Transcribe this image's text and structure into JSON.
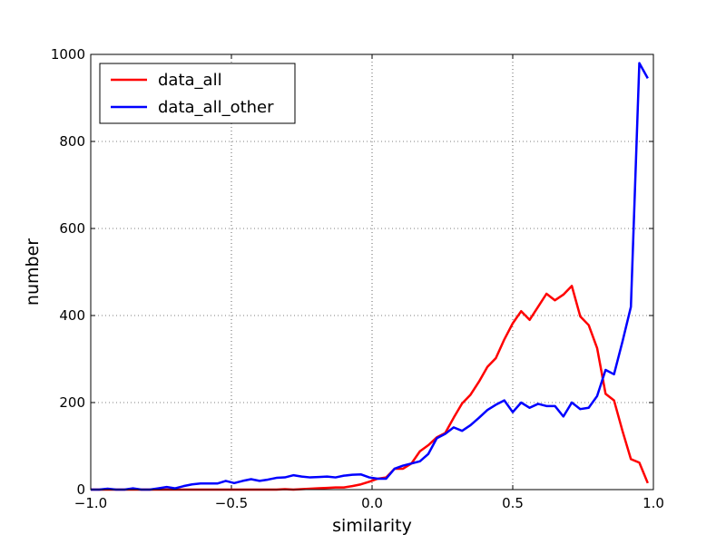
{
  "chart_data": {
    "type": "line",
    "xlabel": "similarity",
    "ylabel": "number",
    "x": [
      -1,
      -0.97,
      -0.94,
      -0.91,
      -0.88,
      -0.85,
      -0.82,
      -0.79,
      -0.76,
      -0.73,
      -0.7,
      -0.67,
      -0.64,
      -0.61,
      -0.58,
      -0.55,
      -0.52,
      -0.49,
      -0.46,
      -0.43,
      -0.4,
      -0.37,
      -0.34,
      -0.31,
      -0.28,
      -0.25,
      -0.22,
      -0.19,
      -0.16,
      -0.13,
      -0.1,
      -0.07,
      -0.04,
      -0.01,
      0.02,
      0.05,
      0.08,
      0.11,
      0.14,
      0.17,
      0.2,
      0.23,
      0.26,
      0.29,
      0.32,
      0.35,
      0.38,
      0.41,
      0.44,
      0.47,
      0.5,
      0.53,
      0.56,
      0.59,
      0.62,
      0.65,
      0.68,
      0.71,
      0.74,
      0.77,
      0.8,
      0.83,
      0.86,
      0.89,
      0.92,
      0.95,
      0.98
    ],
    "series": [
      {
        "name": "data_all",
        "color": "#ff0000",
        "values": [
          0,
          0,
          0,
          0,
          0,
          0,
          0,
          0,
          0,
          0,
          0,
          0,
          0,
          0,
          0,
          0,
          0,
          0,
          0,
          0,
          0,
          0,
          0,
          1,
          0,
          1,
          2,
          3,
          4,
          5,
          5,
          8,
          12,
          18,
          25,
          28,
          48,
          48,
          60,
          88,
          102,
          120,
          130,
          165,
          198,
          218,
          248,
          282,
          302,
          345,
          382,
          410,
          390,
          420,
          450,
          435,
          448,
          468,
          398,
          378,
          325,
          220,
          205,
          135,
          70,
          62,
          15
        ]
      },
      {
        "name": "data_all_other",
        "color": "#0000ff",
        "values": [
          0,
          0,
          2,
          0,
          0,
          3,
          0,
          0,
          3,
          6,
          3,
          8,
          12,
          14,
          14,
          14,
          20,
          15,
          20,
          24,
          20,
          23,
          27,
          28,
          33,
          30,
          28,
          29,
          30,
          28,
          32,
          34,
          35,
          28,
          25,
          25,
          48,
          55,
          60,
          65,
          82,
          118,
          128,
          143,
          135,
          148,
          165,
          183,
          195,
          205,
          178,
          200,
          188,
          197,
          192,
          192,
          168,
          200,
          185,
          188,
          215,
          275,
          265,
          340,
          420,
          980,
          945
        ]
      }
    ],
    "xlim": [
      -1,
      1
    ],
    "ylim": [
      0,
      1000
    ],
    "xticks": [
      {
        "value": -1,
        "label": "−1.0"
      },
      {
        "value": -0.5,
        "label": "−0.5"
      },
      {
        "value": 0,
        "label": "0.0"
      },
      {
        "value": 0.5,
        "label": "0.5"
      },
      {
        "value": 1,
        "label": "1.0"
      }
    ],
    "yticks": [
      0,
      200,
      400,
      600,
      800,
      1000
    ],
    "grid": true,
    "legend": "upper left"
  }
}
